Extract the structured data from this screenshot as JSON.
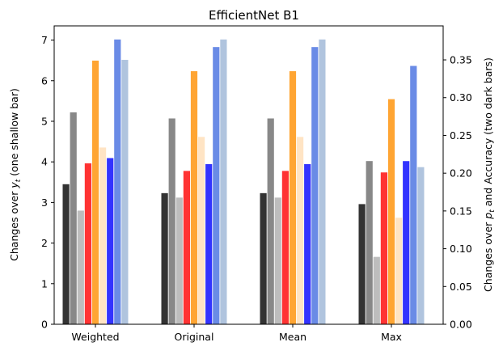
{
  "chart_data": {
    "type": "bar",
    "title": "EfficientNet B1",
    "categories": [
      "Weighted",
      "Original",
      "Mean",
      "Max"
    ],
    "ylabel_left": "Changes over y_t (one shallow bar)",
    "ylabel_right": "Changes over p_t and Accuracy (two dark bars)",
    "ylim_left": [
      0,
      7.35
    ],
    "ylim_right": [
      0,
      0.395
    ],
    "yticks_left": [
      "0",
      "1",
      "2",
      "3",
      "4",
      "5",
      "6",
      "7"
    ],
    "yticks_right": [
      "0.00",
      "0.05",
      "0.10",
      "0.15",
      "0.20",
      "0.25",
      "0.30",
      "0.35"
    ],
    "grid": false,
    "colors": {
      "black": "#333333",
      "gray": "#888888",
      "lightgray": "#bdbdbd",
      "red": "#ff3333",
      "orange": "#ffa533",
      "bisque": "#ffe4c4",
      "blue": "#3333ff",
      "royalblue": "#6a8be6",
      "lightsteelblue": "#b0c4de"
    },
    "series": [
      {
        "color": "black",
        "axis": "left",
        "values": [
          3.45,
          3.23,
          3.23,
          2.96
        ]
      },
      {
        "color": "gray",
        "axis": "left",
        "values": [
          5.22,
          5.07,
          5.07,
          4.02
        ]
      },
      {
        "color": "lightgray",
        "axis": "left",
        "values": [
          2.8,
          3.12,
          3.12,
          1.66
        ]
      },
      {
        "color": "red",
        "axis": "right",
        "values": [
          0.213,
          0.203,
          0.203,
          0.201
        ]
      },
      {
        "color": "orange",
        "axis": "right",
        "values": [
          0.349,
          0.335,
          0.335,
          0.298
        ]
      },
      {
        "color": "bisque",
        "axis": "right",
        "values": [
          0.234,
          0.248,
          0.248,
          0.141
        ]
      },
      {
        "color": "blue",
        "axis": "right",
        "values": [
          0.22,
          0.212,
          0.212,
          0.216
        ]
      },
      {
        "color": "royalblue",
        "axis": "right",
        "values": [
          0.377,
          0.367,
          0.367,
          0.342
        ]
      },
      {
        "color": "lightsteelblue",
        "axis": "right",
        "values": [
          0.35,
          0.377,
          0.377,
          0.208
        ]
      }
    ]
  }
}
